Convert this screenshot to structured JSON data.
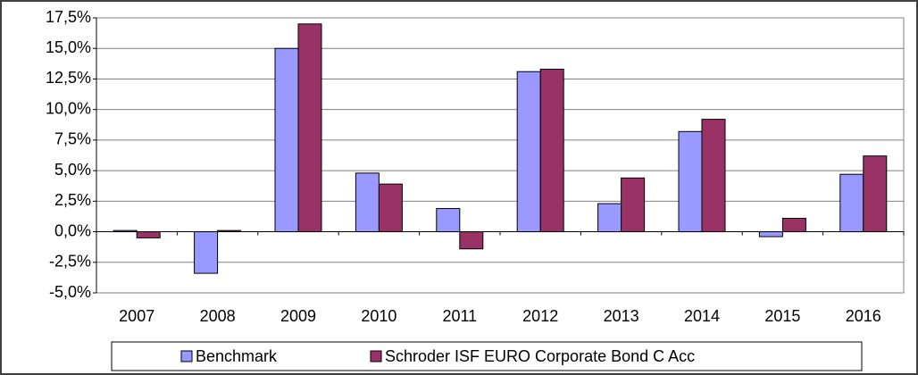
{
  "chart_data": {
    "type": "bar",
    "categories": [
      "2007",
      "2008",
      "2009",
      "2010",
      "2011",
      "2012",
      "2013",
      "2014",
      "2015",
      "2016"
    ],
    "series": [
      {
        "name": "Benchmark",
        "color": "#9999ff",
        "values": [
          0.1,
          -3.4,
          15.0,
          4.8,
          1.9,
          13.1,
          2.3,
          8.2,
          -0.4,
          4.7
        ]
      },
      {
        "name": "Schroder ISF EURO Corporate Bond C Acc",
        "color": "#993366",
        "values": [
          -0.5,
          0.1,
          17.0,
          3.9,
          -1.4,
          13.3,
          4.4,
          9.2,
          1.1,
          6.2
        ]
      }
    ],
    "ylim": [
      -5,
      17.5
    ],
    "yticks": [
      {
        "value": -5,
        "label": "-5,0%"
      },
      {
        "value": -2.5,
        "label": "-2,5%"
      },
      {
        "value": 0,
        "label": "0,0%"
      },
      {
        "value": 2.5,
        "label": "2,5%"
      },
      {
        "value": 5,
        "label": "5,0%"
      },
      {
        "value": 7.5,
        "label": "7,5%"
      },
      {
        "value": 10,
        "label": "10,0%"
      },
      {
        "value": 12.5,
        "label": "12,5%"
      },
      {
        "value": 15,
        "label": "15,0%"
      },
      {
        "value": 17.5,
        "label": "17,5%"
      }
    ],
    "grid": true,
    "legend": "bottom"
  }
}
